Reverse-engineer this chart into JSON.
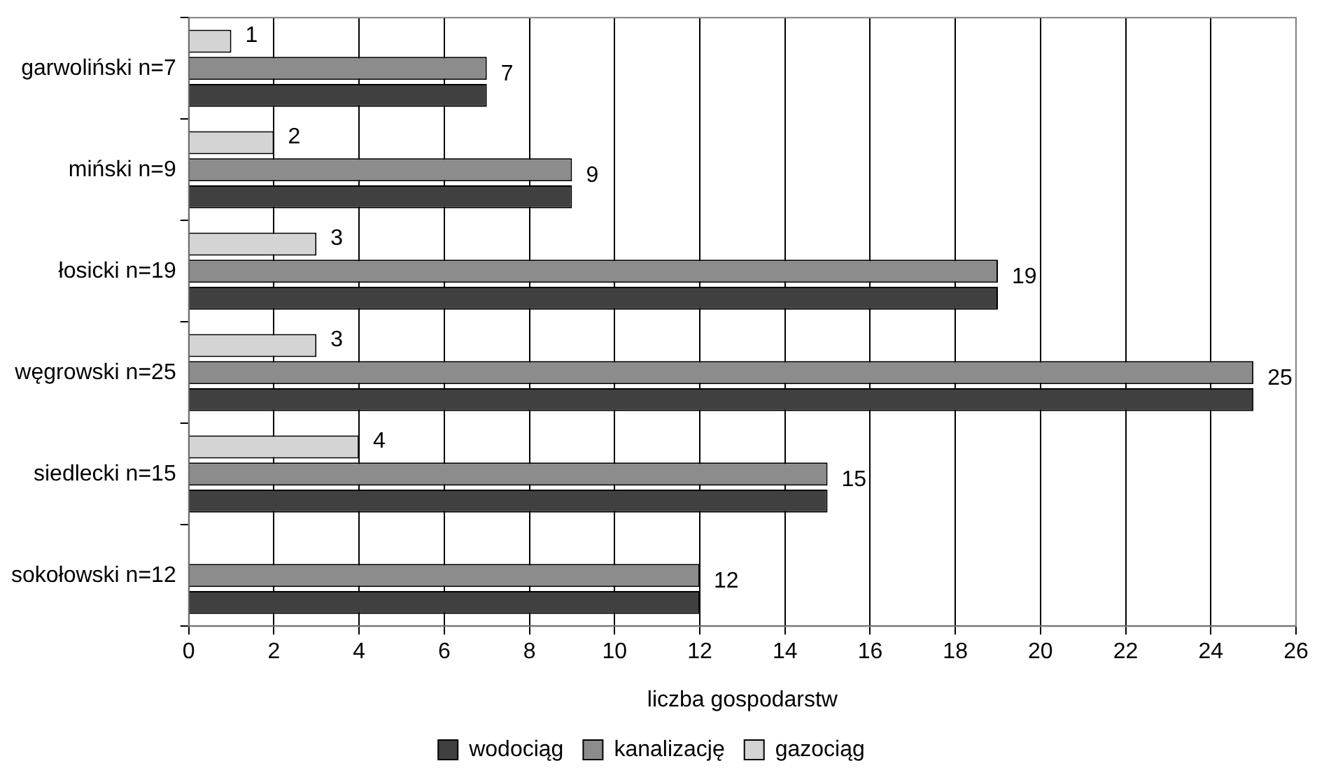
{
  "chart_data": {
    "type": "bar",
    "orientation": "horizontal",
    "xlabel": "liczba gospodarstw",
    "categories": [
      "garwoliński n=7",
      "miński n=9",
      "łosicki n=19",
      "węgrowski n=25",
      "siedlecki n=15",
      "sokołowski n=12"
    ],
    "series": [
      {
        "name": "wodociąg",
        "color": "#404040",
        "values": [
          7,
          9,
          19,
          25,
          15,
          12
        ]
      },
      {
        "name": "kanalizację",
        "color": "#8c8c8c",
        "values": [
          7,
          9,
          19,
          25,
          15,
          12
        ],
        "value_labels": [
          "7",
          "9",
          "19",
          "25",
          "15",
          "12"
        ]
      },
      {
        "name": "gazociąg",
        "color": "#d4d4d4",
        "values": [
          1,
          2,
          3,
          3,
          4,
          null
        ],
        "value_labels": [
          "1",
          "2",
          "3",
          "3",
          "4",
          null
        ]
      }
    ],
    "xlim": [
      0,
      26
    ],
    "xticks": [
      0,
      2,
      4,
      6,
      8,
      10,
      12,
      14,
      16,
      18,
      20,
      22,
      24,
      26
    ],
    "grid": "x",
    "legend": "bottom"
  }
}
